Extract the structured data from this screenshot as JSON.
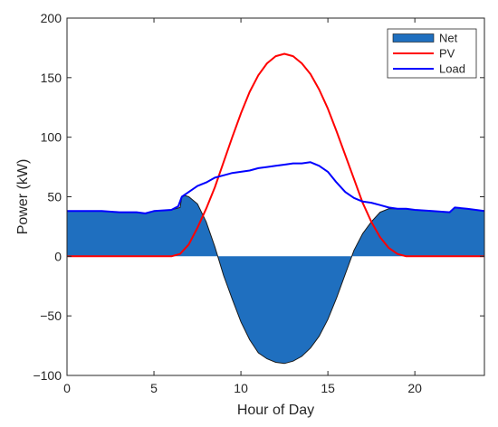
{
  "chart_data": {
    "type": "area",
    "xlabel": "Hour of Day",
    "ylabel": "Power (kW)",
    "xlim": [
      0,
      24
    ],
    "ylim": [
      -100,
      200
    ],
    "xticks": [
      0,
      5,
      10,
      15,
      20
    ],
    "yticks": [
      -100,
      -50,
      0,
      50,
      100,
      150,
      200
    ],
    "xtick_labels": [
      "0",
      "5",
      "10",
      "15",
      "20"
    ],
    "ytick_labels": [
      "−100",
      "−50",
      "0",
      "50",
      "100",
      "150",
      "200"
    ],
    "grid": false,
    "legend_position": "top-right",
    "legend": [
      {
        "name": "Net",
        "kind": "patch",
        "color": "#1f6fbf"
      },
      {
        "name": "PV",
        "kind": "line",
        "color": "#ff0000"
      },
      {
        "name": "Load",
        "kind": "line",
        "color": "#0000ff"
      }
    ],
    "series": [
      {
        "name": "Net",
        "style": "area",
        "color": "#1f6fbf",
        "x": [
          0,
          1,
          2,
          3,
          4,
          4.5,
          5,
          6,
          6.5,
          6.6,
          6.8,
          7,
          7.5,
          8,
          8.5,
          9,
          9.5,
          10,
          10.5,
          11,
          11.5,
          12,
          12.5,
          13,
          13.5,
          14,
          14.5,
          15,
          15.5,
          16,
          16.5,
          17,
          17.5,
          18,
          18.5,
          19,
          19.5,
          20,
          21,
          22,
          22.3,
          23,
          24
        ],
        "y": [
          38,
          38,
          38,
          37,
          37,
          36,
          38,
          39,
          41,
          50,
          51,
          50,
          44,
          29,
          8,
          -16,
          -36,
          -55,
          -70,
          -81,
          -86,
          -89,
          -90,
          -88,
          -84,
          -77,
          -67,
          -53,
          -35,
          -15,
          5,
          19,
          29,
          37,
          40,
          40,
          40,
          39,
          38,
          37,
          41,
          40,
          38
        ]
      },
      {
        "name": "PV",
        "style": "line",
        "color": "#ff0000",
        "x": [
          0,
          5,
          6,
          6.5,
          7,
          7.5,
          8,
          8.5,
          9,
          9.5,
          10,
          10.5,
          11,
          11.5,
          12,
          12.5,
          13,
          13.5,
          14,
          14.5,
          15,
          15.5,
          16,
          16.5,
          17,
          17.5,
          18,
          18.5,
          19,
          19.5,
          20,
          24
        ],
        "y": [
          0,
          0,
          0,
          2,
          10,
          24,
          40,
          58,
          79,
          100,
          120,
          138,
          152,
          162,
          168,
          170,
          168,
          162,
          153,
          140,
          124,
          105,
          85,
          65,
          45,
          29,
          16,
          7,
          2,
          0,
          0,
          0
        ]
      },
      {
        "name": "Load",
        "style": "line",
        "color": "#0000ff",
        "x": [
          0,
          1,
          2,
          3,
          4,
          4.5,
          5,
          6,
          6.4,
          6.6,
          7,
          7.5,
          8,
          8.5,
          9,
          9.5,
          10,
          10.5,
          11,
          11.5,
          12,
          12.5,
          13,
          13.5,
          14,
          14.5,
          15,
          15.5,
          16,
          16.5,
          17,
          17.5,
          18,
          18.5,
          19,
          19.5,
          20,
          21,
          22,
          22.3,
          23,
          24
        ],
        "y": [
          38,
          38,
          38,
          37,
          37,
          36,
          38,
          39,
          42,
          50,
          54,
          59,
          62,
          66,
          68,
          70,
          71,
          72,
          74,
          75,
          76,
          77,
          78,
          78,
          79,
          76,
          71,
          62,
          54,
          49,
          46,
          45,
          43,
          41,
          40,
          40,
          39,
          38,
          37,
          41,
          40,
          38
        ]
      }
    ]
  }
}
